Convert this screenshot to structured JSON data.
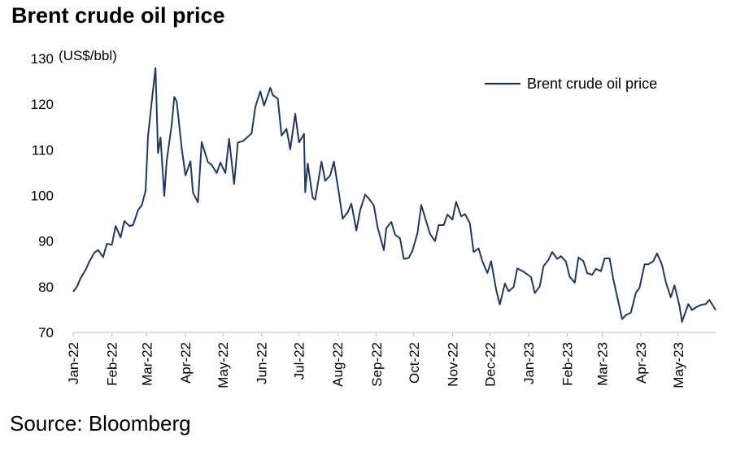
{
  "title": "Brent crude oil price",
  "source": "Source: Bloomberg",
  "chart_data": {
    "type": "line",
    "title": "Brent crude oil price",
    "ylabel": "(US$/bbl)",
    "xlabel": "",
    "ylim": [
      70,
      130
    ],
    "yticks": [
      70,
      80,
      90,
      100,
      110,
      120,
      130
    ],
    "xlim": [
      "2022-01-01",
      "2023-05-31"
    ],
    "xticks": [
      "Jan-22",
      "Feb-22",
      "Mar-22",
      "Apr-22",
      "May-22",
      "Jun-22",
      "Jul-22",
      "Aug-22",
      "Sep-22",
      "Oct-22",
      "Nov-22",
      "Dec-22",
      "Jan-23",
      "Feb-23",
      "Mar-23",
      "Apr-23",
      "May-23"
    ],
    "grid": false,
    "legend": "top-right",
    "line_color": "#1f3864",
    "series": [
      {
        "name": "Brent crude oil price",
        "x": [
          "2022-01-01",
          "2022-01-04",
          "2022-01-07",
          "2022-01-11",
          "2022-01-14",
          "2022-01-18",
          "2022-01-21",
          "2022-01-25",
          "2022-01-28",
          "2022-02-01",
          "2022-02-04",
          "2022-02-08",
          "2022-02-11",
          "2022-02-15",
          "2022-02-18",
          "2022-02-22",
          "2022-02-25",
          "2022-02-28",
          "2022-03-02",
          "2022-03-04",
          "2022-03-06",
          "2022-03-08",
          "2022-03-10",
          "2022-03-12",
          "2022-03-15",
          "2022-03-17",
          "2022-03-21",
          "2022-03-23",
          "2022-03-25",
          "2022-03-29",
          "2022-04-01",
          "2022-04-05",
          "2022-04-07",
          "2022-04-11",
          "2022-04-14",
          "2022-04-19",
          "2022-04-22",
          "2022-04-26",
          "2022-04-29",
          "2022-05-03",
          "2022-05-06",
          "2022-05-10",
          "2022-05-13",
          "2022-05-17",
          "2022-05-20",
          "2022-05-24",
          "2022-05-27",
          "2022-05-31",
          "2022-06-03",
          "2022-06-08",
          "2022-06-10",
          "2022-06-14",
          "2022-06-17",
          "2022-06-21",
          "2022-06-24",
          "2022-06-28",
          "2022-07-01",
          "2022-07-05",
          "2022-07-06",
          "2022-07-08",
          "2022-07-12",
          "2022-07-14",
          "2022-07-19",
          "2022-07-22",
          "2022-07-26",
          "2022-07-29",
          "2022-08-02",
          "2022-08-05",
          "2022-08-09",
          "2022-08-12",
          "2022-08-16",
          "2022-08-19",
          "2022-08-23",
          "2022-08-26",
          "2022-08-30",
          "2022-09-02",
          "2022-09-07",
          "2022-09-09",
          "2022-09-13",
          "2022-09-16",
          "2022-09-20",
          "2022-09-23",
          "2022-09-27",
          "2022-09-30",
          "2022-10-04",
          "2022-10-07",
          "2022-10-11",
          "2022-10-14",
          "2022-10-18",
          "2022-10-21",
          "2022-10-25",
          "2022-10-28",
          "2022-11-01",
          "2022-11-04",
          "2022-11-08",
          "2022-11-11",
          "2022-11-15",
          "2022-11-18",
          "2022-11-22",
          "2022-11-25",
          "2022-11-29",
          "2022-12-02",
          "2022-12-06",
          "2022-12-09",
          "2022-12-13",
          "2022-12-16",
          "2022-12-20",
          "2022-12-23",
          "2022-12-28",
          "2023-01-03",
          "2023-01-06",
          "2023-01-10",
          "2023-01-13",
          "2023-01-17",
          "2023-01-20",
          "2023-01-24",
          "2023-01-27",
          "2023-01-31",
          "2023-02-03",
          "2023-02-07",
          "2023-02-10",
          "2023-02-14",
          "2023-02-17",
          "2023-02-21",
          "2023-02-24",
          "2023-02-28",
          "2023-03-03",
          "2023-03-07",
          "2023-03-10",
          "2023-03-14",
          "2023-03-17",
          "2023-03-20",
          "2023-03-24",
          "2023-03-28",
          "2023-03-31",
          "2023-04-04",
          "2023-04-07",
          "2023-04-11",
          "2023-04-14",
          "2023-04-18",
          "2023-04-21",
          "2023-04-25",
          "2023-04-28",
          "2023-05-02",
          "2023-05-04",
          "2023-05-09",
          "2023-05-12",
          "2023-05-16",
          "2023-05-19",
          "2023-05-23",
          "2023-05-26",
          "2023-05-31"
        ],
        "values": [
          78.9,
          80.0,
          81.9,
          83.7,
          85.5,
          87.5,
          88.0,
          86.5,
          89.4,
          89.2,
          93.3,
          90.8,
          94.4,
          93.3,
          93.5,
          96.8,
          97.9,
          101.0,
          112.9,
          118.1,
          123.2,
          127.9,
          109.3,
          112.7,
          99.9,
          107.6,
          115.6,
          121.6,
          120.6,
          110.2,
          104.4,
          107.5,
          100.6,
          98.5,
          111.7,
          107.3,
          106.7,
          104.9,
          107.2,
          104.9,
          112.4,
          102.5,
          111.6,
          111.9,
          112.6,
          113.6,
          119.4,
          122.8,
          119.7,
          123.6,
          122.0,
          121.2,
          113.1,
          114.6,
          110.1,
          117.9,
          111.6,
          113.5,
          100.7,
          107.0,
          99.5,
          99.1,
          107.4,
          103.2,
          104.4,
          107.4,
          100.5,
          94.9,
          96.3,
          98.2,
          92.3,
          96.7,
          100.2,
          99.3,
          97.8,
          93.0,
          88.0,
          92.8,
          94.2,
          91.4,
          90.6,
          86.1,
          86.3,
          87.9,
          91.8,
          97.9,
          94.3,
          91.6,
          90.0,
          93.5,
          93.5,
          95.8,
          94.7,
          98.6,
          95.4,
          95.9,
          93.9,
          87.6,
          88.4,
          85.6,
          83.0,
          85.6,
          79.4,
          76.1,
          80.7,
          79.0,
          79.9,
          84.0,
          83.3,
          82.1,
          78.6,
          80.1,
          84.5,
          85.9,
          87.6,
          86.1,
          86.7,
          85.5,
          82.2,
          80.9,
          86.4,
          85.6,
          83.0,
          82.6,
          83.9,
          83.4,
          86.2,
          86.2,
          81.6,
          76.7,
          72.9,
          73.8,
          74.3,
          78.6,
          79.8,
          84.9,
          84.9,
          85.6,
          87.3,
          84.8,
          81.1,
          77.7,
          80.3,
          75.8,
          72.3,
          76.2,
          74.9,
          75.6,
          76.0,
          76.2,
          77.1,
          74.9
        ]
      }
    ]
  },
  "legend_label": "Brent crude oil price"
}
